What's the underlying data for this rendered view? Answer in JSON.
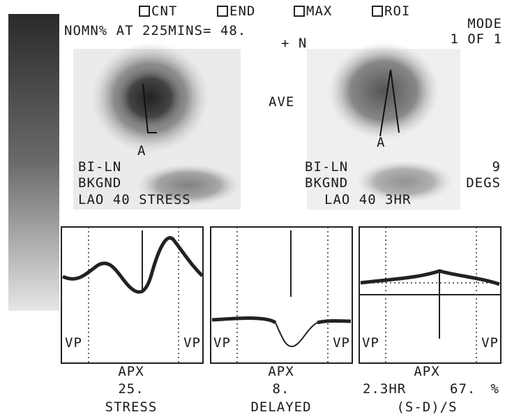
{
  "header": {
    "menu": [
      "CNT",
      "END",
      "MAX",
      "ROI"
    ],
    "mode": "MODE",
    "page": "1 OF 1",
    "summary": "NOMN% AT 225MINS= 48.",
    "marker": "+ N"
  },
  "center_label": "AVE",
  "images": [
    {
      "apex": "A",
      "lines": [
        "BI-LN",
        "BKGND",
        "LAO 40 STRESS"
      ]
    },
    {
      "apex": "A",
      "lines": [
        "BI-LN",
        "BKGND",
        "LAO 40 3HR"
      ],
      "angle": "9",
      "angle_unit": "DEGS"
    }
  ],
  "panels": [
    {
      "markers": [
        "VP",
        "VP"
      ],
      "site": "APX",
      "value": "25.",
      "label": "STRESS"
    },
    {
      "markers": [
        "VP",
        "VP"
      ],
      "site": "APX",
      "value": "8.",
      "label": "DELAYED"
    },
    {
      "markers": [
        "VP",
        "VP"
      ],
      "site": "APX",
      "value": "2.3HR",
      "ratio": "67.",
      "unit": "%",
      "label": "(S-D)/S"
    }
  ]
}
